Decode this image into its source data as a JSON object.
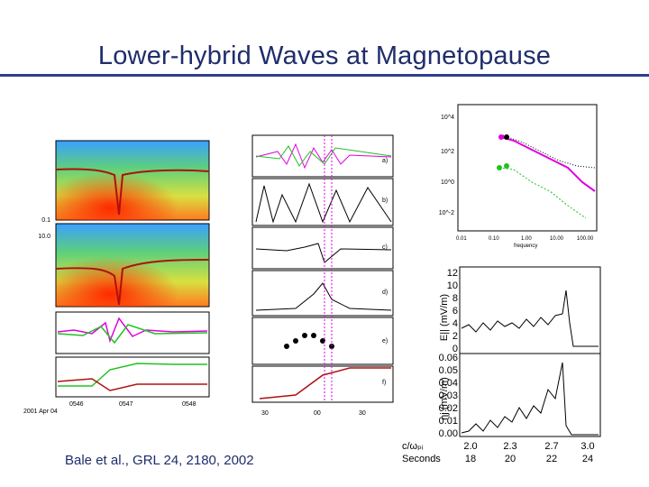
{
  "slide": {
    "title": "Lower-hybrid Waves at Magnetopause",
    "citation": "Bale et al., GRL 24, 2180, 2002"
  },
  "left_panel": {
    "ytick_top": "0.1",
    "ytick_mid": "10.0",
    "date_label": "2001 Apr 04",
    "xticks": [
      "0546",
      "0547",
      "0548"
    ],
    "xtick_mid_labels": [
      "30",
      "00",
      "30"
    ]
  },
  "mid_panel": {
    "panel_letters": [
      "a)",
      "b)",
      "c)",
      "d)",
      "e)",
      "f)"
    ],
    "xticks": [
      "30",
      "00",
      "30"
    ]
  },
  "spectrum": {
    "xticks": [
      "0.01",
      "0.10",
      "1.00",
      "10.00",
      "100.00"
    ],
    "xlabel": "frequency",
    "yticks": [
      "10^4",
      "10^2",
      "10^0",
      "10^-2"
    ]
  },
  "timeseries": {
    "top_ylabel": "E|| (mV/m)",
    "top_yticks": [
      "12",
      "10",
      "8",
      "6",
      "4",
      "2",
      "0"
    ],
    "bot_ylabel": "ηj (mV/m)",
    "bot_yticks": [
      "0.06",
      "0.05",
      "0.04",
      "0.03",
      "0.02",
      "0.01",
      "0.00"
    ],
    "xrow1_label": "c/ωₚᵢ",
    "xrow1": [
      "2.0",
      "2.3",
      "2.7",
      "3.0"
    ],
    "xrow2_label": "Seconds",
    "xrow2": [
      "18",
      "20",
      "22",
      "24"
    ]
  },
  "colors": {
    "title": "#1f2d6b",
    "rule": "#2f3f8f",
    "magenta": "#e000e0",
    "green": "#22c022",
    "trace_red": "#b01010"
  }
}
